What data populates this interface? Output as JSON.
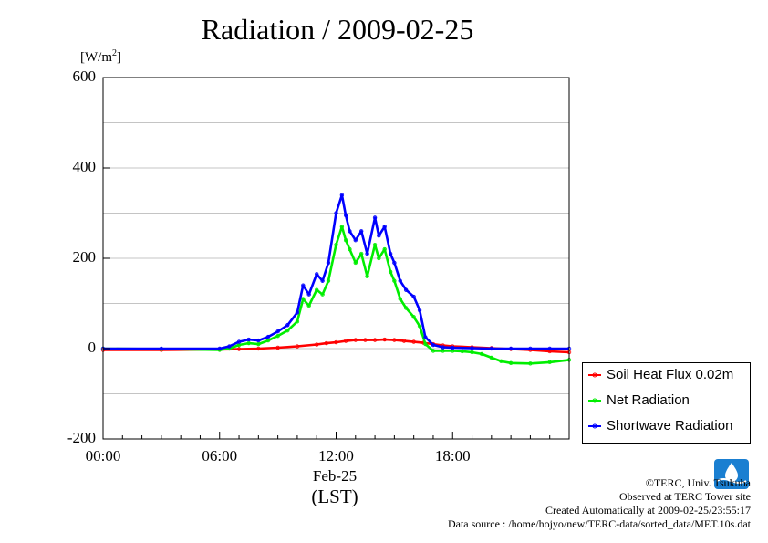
{
  "chart_data": {
    "type": "line",
    "title": "Radiation / 2009-02-25",
    "ylabel": "[W/m",
    "ylabel_sup": "2",
    "ylabel_close": "]",
    "ylim": [
      -200,
      600
    ],
    "yticks": [
      -200,
      0,
      200,
      400,
      600
    ],
    "ytick_labels": [
      "-200",
      "0",
      "200",
      "400",
      "600"
    ],
    "xlim": [
      0,
      24
    ],
    "xticks": [
      0,
      6,
      12,
      18
    ],
    "xtick_labels": [
      "00:00",
      "06:00",
      "12:00",
      "18:00"
    ],
    "x_date_label": "Feb-25",
    "x_tz_label": "(LST)",
    "grid": true,
    "legend_position": "right, below plot",
    "series": [
      {
        "name": "Soil Heat Flux 0.02m",
        "color": "#ff0000",
        "x": [
          0,
          3,
          6,
          7,
          8,
          9,
          10,
          11,
          11.5,
          12,
          12.5,
          13,
          13.5,
          14,
          14.5,
          15,
          15.5,
          16,
          16.5,
          17,
          17.5,
          18,
          19,
          20,
          21,
          22,
          23,
          24
        ],
        "y": [
          -3,
          -3,
          -2,
          -1,
          0,
          2,
          5,
          9,
          12,
          14,
          17,
          19,
          19,
          19,
          20,
          19,
          17,
          15,
          13,
          10,
          7,
          5,
          3,
          1,
          -1,
          -3,
          -6,
          -8
        ]
      },
      {
        "name": "Net Radiation",
        "color": "#00ee00",
        "x": [
          0,
          3,
          6,
          6.5,
          7,
          7.5,
          8,
          8.5,
          9,
          9.5,
          10,
          10.3,
          10.6,
          11,
          11.3,
          11.6,
          12,
          12.3,
          12.5,
          12.7,
          13,
          13.3,
          13.6,
          14,
          14.2,
          14.5,
          14.8,
          15,
          15.3,
          15.6,
          16,
          16.3,
          16.6,
          17,
          17.5,
          18,
          18.5,
          19,
          19.5,
          20,
          20.5,
          21,
          22,
          23,
          24
        ],
        "y": [
          0,
          -1,
          -3,
          0,
          8,
          12,
          10,
          18,
          28,
          40,
          60,
          110,
          95,
          130,
          120,
          150,
          230,
          270,
          240,
          220,
          190,
          210,
          160,
          230,
          200,
          220,
          170,
          150,
          110,
          90,
          70,
          50,
          10,
          -5,
          -5,
          -5,
          -6,
          -8,
          -12,
          -20,
          -28,
          -32,
          -33,
          -30,
          -25
        ]
      },
      {
        "name": "Shortwave Radiation",
        "color": "#0000ff",
        "x": [
          0,
          3,
          6,
          6.5,
          7,
          7.5,
          8,
          8.5,
          9,
          9.5,
          10,
          10.3,
          10.6,
          11,
          11.3,
          11.6,
          12,
          12.3,
          12.5,
          12.7,
          13,
          13.3,
          13.6,
          14,
          14.2,
          14.5,
          14.8,
          15,
          15.3,
          15.6,
          16,
          16.3,
          16.6,
          17,
          17.5,
          18,
          19,
          20,
          21,
          22,
          23,
          24
        ],
        "y": [
          0,
          0,
          0,
          5,
          15,
          20,
          18,
          26,
          38,
          52,
          80,
          140,
          120,
          165,
          150,
          190,
          300,
          340,
          295,
          260,
          240,
          260,
          210,
          290,
          250,
          270,
          210,
          190,
          150,
          130,
          115,
          85,
          25,
          8,
          3,
          2,
          1,
          0,
          0,
          0,
          0,
          0
        ]
      }
    ]
  },
  "credits": [
    "©TERC, Univ. Tsukuba",
    "Observed at TERC Tower site",
    "Created Automatically at 2009-02-25/23:55:17",
    "Data source : /home/hojyo/new/TERC-data/sorted_data/MET.10s.dat"
  ],
  "logo_text": "TERC"
}
